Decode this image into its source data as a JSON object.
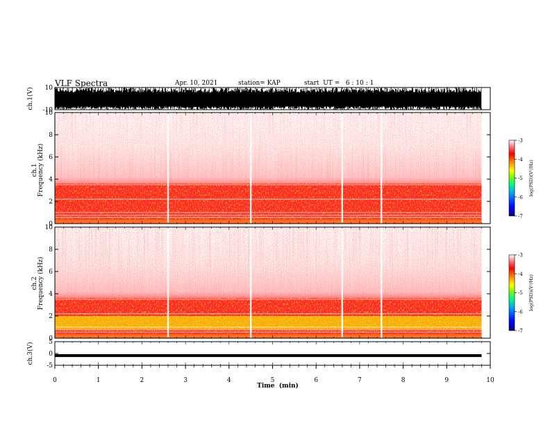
{
  "header": {
    "title": "VLF Spectra",
    "date": "Apr. 10, 2021",
    "station": "station= KAP",
    "start": "start  UT =   6 : 10 : 1"
  },
  "chart_data": [
    {
      "type": "line",
      "panel": "ch1-waveform",
      "ylabel": "ch.1(V)",
      "ylim": [
        -10,
        10
      ],
      "ytick_labels": [
        "-10",
        "10"
      ],
      "x_range_min": [
        0,
        9.8
      ],
      "trace": "dense black waveform clipping near ±10 V over the full record"
    },
    {
      "type": "heatmap",
      "panel": "ch1-spectrogram",
      "ylabel": "ch.1\nFrequency (kHz)",
      "ylim": [
        0,
        10
      ],
      "ytick_labels": [
        "0",
        "2",
        "4",
        "6",
        "8",
        "10"
      ],
      "x_range_min": [
        0,
        9.8
      ],
      "colorbar": {
        "label": "log(PSD)(V²/Hz)",
        "range": [
          -7,
          -3
        ],
        "tick_labels": [
          "-3",
          "-4",
          "-5",
          "-6",
          "-7"
        ],
        "colors": [
          "#000080",
          "#0000ff",
          "#00a0ff",
          "#00ff80",
          "#80ff00",
          "#ffff00",
          "#ff8000",
          "#ff0000",
          "#ff8080",
          "#ffffff"
        ]
      },
      "features": {
        "noise_floor_band_khz": [
          0.3,
          3.6
        ],
        "vertical_bursts_min": [
          2.6,
          4.5,
          6.6,
          7.5
        ]
      }
    },
    {
      "type": "heatmap",
      "panel": "ch2-spectrogram",
      "ylabel": "ch.2\nFrequency (kHz)",
      "ylim": [
        0,
        10
      ],
      "ytick_labels": [
        "0",
        "2",
        "4",
        "6",
        "8",
        "10"
      ],
      "x_range_min": [
        0,
        9.8
      ],
      "colorbar": {
        "label": "log(PSD)(V²/Hz)",
        "range": [
          -7,
          -3
        ],
        "tick_labels": [
          "-3",
          "-4",
          "-5",
          "-6",
          "-7"
        ]
      },
      "features": {
        "intense_band_khz": [
          0.8,
          2.0
        ],
        "noise_floor_band_khz": [
          0.3,
          3.6
        ],
        "vertical_bursts_min": [
          2.6,
          4.5,
          6.6,
          7.5
        ]
      }
    },
    {
      "type": "line",
      "panel": "ch3-waveform",
      "ylabel": "ch.3(V)",
      "ylim": [
        -5,
        5
      ],
      "ytick_labels": [
        "-5",
        "0",
        "5"
      ],
      "x_range_min": [
        0,
        9.8
      ],
      "trace": "narrow black band centred near -1 V"
    }
  ],
  "xaxis": {
    "label": "Time  (min)",
    "range": [
      0,
      10
    ],
    "tick_labels": [
      "0",
      "1",
      "2",
      "3",
      "4",
      "5",
      "6",
      "7",
      "8",
      "9",
      "10"
    ]
  },
  "colors": {
    "frame": "#000000",
    "background": "#ffffff"
  }
}
